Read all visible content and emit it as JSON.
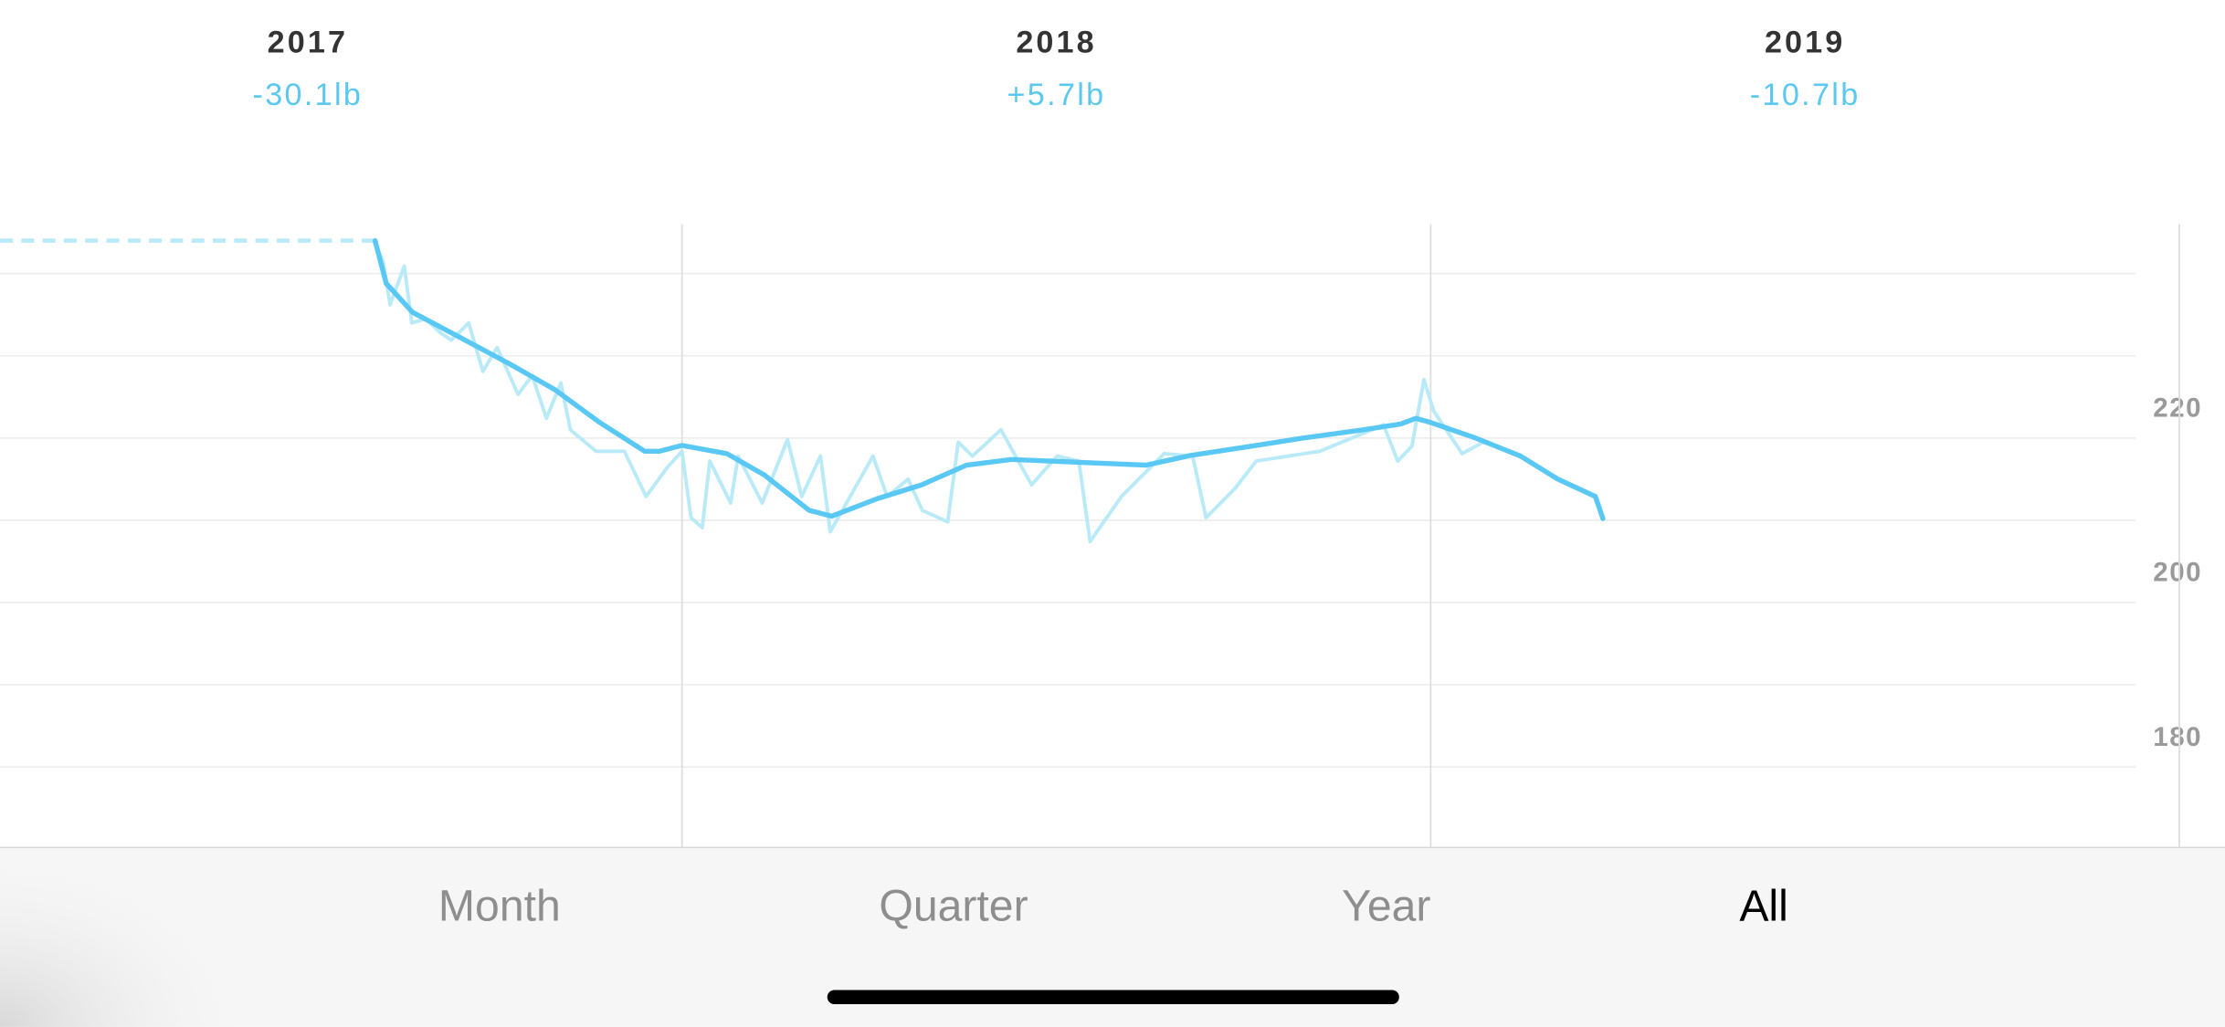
{
  "chart_data": {
    "type": "line",
    "year_summaries": [
      {
        "label": "2017",
        "change": "-30.1lb"
      },
      {
        "label": "2018",
        "change": "+5.7lb"
      },
      {
        "label": "2019",
        "change": "-10.7lb"
      }
    ],
    "xlim": [
      2017.089,
      2020.061
    ],
    "ylim": [
      170.3,
      246.0
    ],
    "yticks": [
      180,
      200,
      220
    ],
    "grid_yticks": [
      180,
      190,
      200,
      210,
      220,
      230,
      240
    ],
    "year_dividers": [
      2018,
      2019,
      2020
    ],
    "series": [
      {
        "color": "#b9eaf8",
        "x": [
          2017.588,
          2017.601,
          2017.61,
          2017.629,
          2017.639,
          2017.658,
          2017.677,
          2017.692,
          2017.715,
          2017.734,
          2017.753,
          2017.781,
          2017.8,
          2017.819,
          2017.838,
          2017.851,
          2017.885,
          2017.923,
          2017.952,
          2017.98,
          2018.0,
          2018.012,
          2018.027,
          2018.037,
          2018.065,
          2018.075,
          2018.107,
          2018.141,
          2018.16,
          2018.185,
          2018.198,
          2018.255,
          2018.274,
          2018.302,
          2018.321,
          2018.355,
          2018.369,
          2018.388,
          2018.426,
          2018.467,
          2018.501,
          2018.53,
          2018.545,
          2018.587,
          2018.644,
          2018.682,
          2018.7,
          2018.738,
          2018.767,
          2018.852,
          2018.937,
          2018.956,
          2018.975,
          2018.991,
          2019.004,
          2019.042,
          2019.07
        ],
        "values": [
          244.0,
          241.4,
          236.2,
          240.9,
          234.0,
          234.5,
          232.8,
          231.9,
          234.0,
          228.1,
          231.0,
          225.3,
          227.6,
          222.4,
          226.7,
          221.0,
          218.4,
          218.4,
          212.9,
          216.4,
          218.4,
          210.3,
          209.1,
          217.2,
          212.1,
          217.8,
          212.1,
          219.8,
          212.9,
          217.8,
          208.6,
          217.8,
          212.9,
          215.0,
          211.2,
          209.8,
          219.5,
          217.8,
          221.0,
          214.3,
          217.8,
          217.2,
          207.4,
          212.9,
          218.1,
          217.8,
          210.3,
          213.8,
          217.2,
          218.4,
          221.6,
          217.2,
          219.0,
          227.1,
          223.3,
          218.1,
          219.5
        ]
      },
      {
        "color": "#5ac8f5",
        "x": [
          2017.59,
          2017.605,
          2017.64,
          2017.7,
          2017.77,
          2017.83,
          2017.89,
          2017.95,
          2017.97,
          2018.0,
          2018.06,
          2018.11,
          2018.17,
          2018.2,
          2018.26,
          2018.32,
          2018.38,
          2018.44,
          2018.49,
          2018.57,
          2018.62,
          2018.68,
          2018.76,
          2018.83,
          2018.91,
          2018.96,
          2018.98,
          2019.0,
          2019.06,
          2019.12,
          2019.17,
          2019.22,
          2019.23
        ],
        "values": [
          244.0,
          238.8,
          235.3,
          232.4,
          229.0,
          225.9,
          221.9,
          218.4,
          218.4,
          219.1,
          218.1,
          215.5,
          211.2,
          210.5,
          212.6,
          214.3,
          216.7,
          217.4,
          217.2,
          216.9,
          216.7,
          217.9,
          219.0,
          220.0,
          221.0,
          221.7,
          222.4,
          221.9,
          220.0,
          217.8,
          215.0,
          212.9,
          210.2
        ]
      }
    ]
  },
  "tabs": [
    "Month",
    "Quarter",
    "Year",
    "All"
  ],
  "selected_tab": 3
}
